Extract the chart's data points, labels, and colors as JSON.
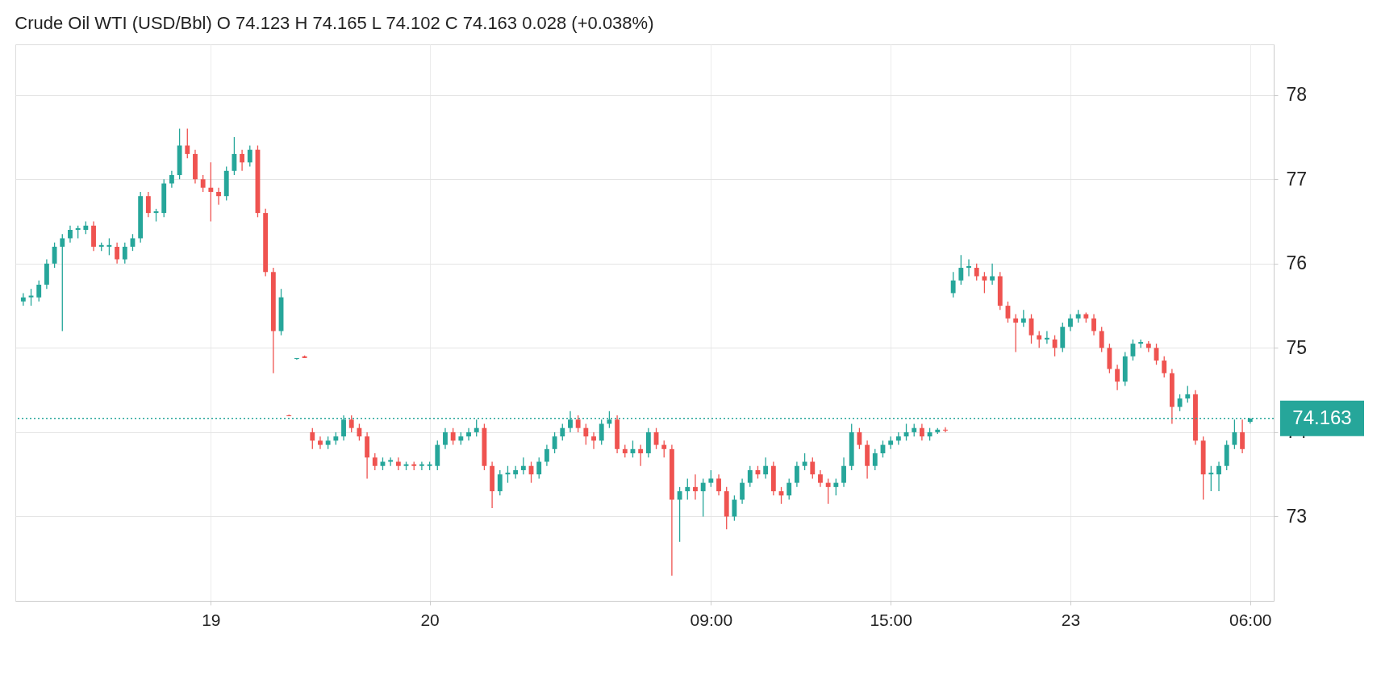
{
  "chart_data": {
    "type": "candlestick",
    "title": "Crude Oil WTI (USD/Bbl) O 74.123 H 74.165 L 74.102 C 74.163  0.028 (+0.038%)",
    "categories": [
      null,
      null,
      null,
      null,
      null,
      null,
      null,
      null,
      null,
      null,
      null,
      null,
      null,
      null,
      null,
      null,
      null,
      null,
      null,
      null,
      null,
      null,
      null,
      null,
      "19",
      null,
      null,
      null,
      null,
      null,
      null,
      null,
      null,
      null,
      null,
      null,
      null,
      null,
      null,
      null,
      null,
      null,
      null,
      null,
      null,
      null,
      null,
      null,
      null,
      null,
      null,
      null,
      "20",
      null,
      null,
      null,
      null,
      null,
      null,
      null,
      null,
      null,
      null,
      null,
      null,
      null,
      null,
      null,
      null,
      null,
      null,
      null,
      null,
      null,
      null,
      null,
      null,
      null,
      null,
      null,
      null,
      null,
      null,
      null,
      null,
      null,
      null,
      null,
      "09:00",
      null,
      null,
      null,
      null,
      null,
      null,
      null,
      null,
      null,
      null,
      null,
      null,
      null,
      null,
      null,
      null,
      null,
      null,
      null,
      null,
      null,
      null,
      "15:00",
      null,
      null,
      null,
      null,
      null,
      null,
      null,
      null,
      null,
      null,
      null,
      null,
      null,
      null,
      null,
      null,
      null,
      null,
      null,
      null,
      null,
      null,
      "23",
      null,
      null,
      null,
      null,
      null,
      null,
      null,
      null,
      null,
      null,
      null,
      null,
      null,
      null,
      null,
      null,
      null,
      null,
      null,
      null,
      null,
      null,
      "06:00",
      null,
      null
    ],
    "ohlc": [
      [
        75.55,
        75.65,
        75.5,
        75.6
      ],
      [
        75.6,
        75.7,
        75.5,
        75.62
      ],
      [
        75.6,
        75.8,
        75.55,
        75.75
      ],
      [
        75.75,
        76.05,
        75.7,
        76.0
      ],
      [
        76.0,
        76.25,
        75.95,
        76.2
      ],
      [
        76.2,
        76.35,
        75.2,
        76.3
      ],
      [
        76.3,
        76.45,
        76.25,
        76.4
      ],
      [
        76.4,
        76.45,
        76.3,
        76.42
      ],
      [
        76.4,
        76.5,
        76.35,
        76.45
      ],
      [
        76.45,
        76.5,
        76.15,
        76.2
      ],
      [
        76.2,
        76.25,
        76.15,
        76.22
      ],
      [
        76.2,
        76.3,
        76.1,
        76.22
      ],
      [
        76.2,
        76.25,
        76.0,
        76.05
      ],
      [
        76.05,
        76.25,
        76.0,
        76.2
      ],
      [
        76.2,
        76.35,
        76.15,
        76.3
      ],
      [
        76.3,
        76.85,
        76.25,
        76.8
      ],
      [
        76.8,
        76.85,
        76.55,
        76.6
      ],
      [
        76.6,
        76.65,
        76.5,
        76.62
      ],
      [
        76.6,
        77.0,
        76.55,
        76.95
      ],
      [
        76.95,
        77.1,
        76.9,
        77.05
      ],
      [
        77.05,
        77.6,
        77.0,
        77.4
      ],
      [
        77.4,
        77.6,
        77.25,
        77.3
      ],
      [
        77.3,
        77.35,
        76.95,
        77.0
      ],
      [
        77.0,
        77.05,
        76.85,
        76.9
      ],
      [
        76.9,
        77.2,
        76.5,
        76.85
      ],
      [
        76.85,
        76.9,
        76.7,
        76.8
      ],
      [
        76.8,
        77.15,
        76.75,
        77.1
      ],
      [
        77.1,
        77.5,
        77.05,
        77.3
      ],
      [
        77.3,
        77.35,
        77.1,
        77.2
      ],
      [
        77.2,
        77.4,
        77.15,
        77.35
      ],
      [
        77.35,
        77.4,
        76.55,
        76.6
      ],
      [
        76.6,
        76.65,
        75.85,
        75.9
      ],
      [
        75.9,
        75.95,
        74.7,
        75.2
      ],
      [
        75.2,
        75.7,
        75.15,
        75.6
      ],
      [
        74.2,
        74.21,
        74.19,
        74.19
      ],
      [
        74.87,
        74.88,
        74.86,
        74.88
      ],
      [
        74.9,
        74.91,
        74.88,
        74.88
      ],
      [
        74.0,
        74.05,
        73.8,
        73.9
      ],
      [
        73.9,
        73.95,
        73.8,
        73.85
      ],
      [
        73.85,
        73.95,
        73.8,
        73.9
      ],
      [
        73.9,
        74.0,
        73.85,
        73.95
      ],
      [
        73.95,
        74.2,
        73.9,
        74.15
      ],
      [
        74.15,
        74.2,
        74.0,
        74.05
      ],
      [
        74.05,
        74.1,
        73.9,
        73.95
      ],
      [
        73.95,
        74.0,
        73.45,
        73.7
      ],
      [
        73.7,
        73.75,
        73.55,
        73.6
      ],
      [
        73.6,
        73.7,
        73.55,
        73.65
      ],
      [
        73.65,
        73.7,
        73.6,
        73.67
      ],
      [
        73.65,
        73.7,
        73.55,
        73.6
      ],
      [
        73.6,
        73.65,
        73.55,
        73.62
      ],
      [
        73.62,
        73.65,
        73.55,
        73.6
      ],
      [
        73.6,
        73.65,
        73.55,
        73.62
      ],
      [
        73.6,
        73.65,
        73.55,
        73.62
      ],
      [
        73.6,
        73.9,
        73.55,
        73.85
      ],
      [
        73.85,
        74.05,
        73.8,
        74.0
      ],
      [
        74.0,
        74.05,
        73.85,
        73.9
      ],
      [
        73.9,
        74.0,
        73.85,
        73.95
      ],
      [
        73.95,
        74.05,
        73.9,
        74.0
      ],
      [
        74.0,
        74.15,
        73.95,
        74.05
      ],
      [
        74.05,
        74.1,
        73.55,
        73.6
      ],
      [
        73.6,
        73.65,
        73.1,
        73.3
      ],
      [
        73.3,
        73.55,
        73.25,
        73.5
      ],
      [
        73.5,
        73.6,
        73.4,
        73.52
      ],
      [
        73.5,
        73.6,
        73.45,
        73.55
      ],
      [
        73.55,
        73.7,
        73.5,
        73.6
      ],
      [
        73.6,
        73.65,
        73.4,
        73.5
      ],
      [
        73.5,
        73.7,
        73.45,
        73.65
      ],
      [
        73.65,
        73.85,
        73.6,
        73.8
      ],
      [
        73.8,
        74.0,
        73.75,
        73.95
      ],
      [
        73.95,
        74.1,
        73.9,
        74.05
      ],
      [
        74.05,
        74.25,
        74.0,
        74.15
      ],
      [
        74.15,
        74.2,
        74.0,
        74.05
      ],
      [
        74.05,
        74.1,
        73.85,
        73.95
      ],
      [
        73.95,
        74.0,
        73.8,
        73.9
      ],
      [
        73.9,
        74.15,
        73.85,
        74.1
      ],
      [
        74.1,
        74.25,
        74.05,
        74.15
      ],
      [
        74.15,
        74.2,
        73.75,
        73.8
      ],
      [
        73.8,
        73.85,
        73.7,
        73.75
      ],
      [
        73.75,
        73.9,
        73.7,
        73.8
      ],
      [
        73.8,
        73.85,
        73.6,
        73.75
      ],
      [
        73.75,
        74.05,
        73.7,
        74.0
      ],
      [
        74.0,
        74.05,
        73.8,
        73.85
      ],
      [
        73.85,
        73.9,
        73.7,
        73.8
      ],
      [
        73.8,
        73.85,
        72.3,
        73.2
      ],
      [
        73.2,
        73.35,
        72.7,
        73.3
      ],
      [
        73.3,
        73.45,
        73.2,
        73.35
      ],
      [
        73.35,
        73.5,
        73.2,
        73.3
      ],
      [
        73.3,
        73.45,
        73.0,
        73.4
      ],
      [
        73.4,
        73.55,
        73.35,
        73.45
      ],
      [
        73.45,
        73.5,
        73.25,
        73.3
      ],
      [
        73.3,
        73.35,
        72.85,
        73.0
      ],
      [
        73.0,
        73.25,
        72.95,
        73.2
      ],
      [
        73.2,
        73.45,
        73.15,
        73.4
      ],
      [
        73.4,
        73.6,
        73.35,
        73.55
      ],
      [
        73.55,
        73.6,
        73.45,
        73.5
      ],
      [
        73.5,
        73.7,
        73.45,
        73.6
      ],
      [
        73.6,
        73.65,
        73.25,
        73.3
      ],
      [
        73.3,
        73.35,
        73.15,
        73.25
      ],
      [
        73.25,
        73.45,
        73.2,
        73.4
      ],
      [
        73.4,
        73.65,
        73.35,
        73.6
      ],
      [
        73.6,
        73.75,
        73.55,
        73.65
      ],
      [
        73.65,
        73.7,
        73.45,
        73.5
      ],
      [
        73.5,
        73.55,
        73.35,
        73.4
      ],
      [
        73.4,
        73.45,
        73.15,
        73.35
      ],
      [
        73.35,
        73.45,
        73.25,
        73.4
      ],
      [
        73.4,
        73.7,
        73.35,
        73.6
      ],
      [
        73.6,
        74.1,
        73.55,
        74.0
      ],
      [
        74.0,
        74.05,
        73.8,
        73.85
      ],
      [
        73.85,
        73.9,
        73.45,
        73.6
      ],
      [
        73.6,
        73.8,
        73.55,
        73.75
      ],
      [
        73.75,
        73.9,
        73.7,
        73.85
      ],
      [
        73.85,
        73.95,
        73.8,
        73.9
      ],
      [
        73.9,
        74.0,
        73.85,
        73.95
      ],
      [
        73.95,
        74.1,
        73.9,
        74.0
      ],
      [
        74.0,
        74.1,
        73.95,
        74.05
      ],
      [
        74.05,
        74.1,
        73.9,
        73.95
      ],
      [
        73.95,
        74.05,
        73.9,
        74.0
      ],
      [
        74.0,
        74.05,
        73.98,
        74.03
      ],
      [
        74.03,
        74.06,
        74.0,
        74.02
      ],
      [
        75.65,
        75.9,
        75.6,
        75.8
      ],
      [
        75.8,
        76.1,
        75.75,
        75.95
      ],
      [
        75.95,
        76.05,
        75.85,
        75.97
      ],
      [
        75.95,
        76.0,
        75.8,
        75.85
      ],
      [
        75.85,
        75.9,
        75.65,
        75.8
      ],
      [
        75.8,
        76.0,
        75.75,
        75.85
      ],
      [
        75.85,
        75.9,
        75.45,
        75.5
      ],
      [
        75.5,
        75.55,
        75.3,
        75.35
      ],
      [
        75.35,
        75.4,
        74.95,
        75.3
      ],
      [
        75.3,
        75.45,
        75.25,
        75.35
      ],
      [
        75.35,
        75.4,
        75.05,
        75.15
      ],
      [
        75.15,
        75.2,
        75.0,
        75.1
      ],
      [
        75.1,
        75.2,
        75.05,
        75.12
      ],
      [
        75.1,
        75.15,
        74.9,
        75.0
      ],
      [
        75.0,
        75.3,
        74.95,
        75.25
      ],
      [
        75.25,
        75.4,
        75.2,
        75.35
      ],
      [
        75.35,
        75.45,
        75.3,
        75.4
      ],
      [
        75.4,
        75.42,
        75.3,
        75.35
      ],
      [
        75.35,
        75.4,
        75.15,
        75.2
      ],
      [
        75.2,
        75.25,
        74.95,
        75.0
      ],
      [
        75.0,
        75.05,
        74.7,
        74.75
      ],
      [
        74.75,
        74.8,
        74.5,
        74.6
      ],
      [
        74.6,
        74.95,
        74.55,
        74.9
      ],
      [
        74.9,
        75.1,
        74.85,
        75.05
      ],
      [
        75.05,
        75.1,
        75.0,
        75.07
      ],
      [
        75.05,
        75.08,
        74.95,
        75.0
      ],
      [
        75.0,
        75.05,
        74.8,
        74.85
      ],
      [
        74.85,
        74.9,
        74.65,
        74.7
      ],
      [
        74.7,
        74.75,
        74.1,
        74.3
      ],
      [
        74.3,
        74.45,
        74.25,
        74.4
      ],
      [
        74.4,
        74.55,
        74.35,
        74.45
      ],
      [
        74.45,
        74.5,
        73.85,
        73.9
      ],
      [
        73.9,
        73.95,
        73.2,
        73.5
      ],
      [
        73.5,
        73.6,
        73.3,
        73.52
      ],
      [
        73.5,
        73.65,
        73.3,
        73.6
      ],
      [
        73.6,
        73.9,
        73.55,
        73.85
      ],
      [
        73.85,
        74.15,
        73.8,
        74.0
      ],
      [
        74.0,
        74.15,
        73.75,
        73.8
      ],
      [
        74.123,
        74.165,
        74.102,
        74.163
      ],
      null,
      null
    ],
    "colors": [
      "#26a69a",
      "#26a69a",
      "#26a69a",
      "#26a69a",
      "#26a69a",
      "#26a69a",
      "#26a69a",
      "#26a69a",
      "#26a69a",
      "#ef5350",
      "#26a69a",
      "#26a69a",
      "#ef5350",
      "#26a69a",
      "#26a69a",
      "#26a69a",
      "#ef5350",
      "#26a69a",
      "#26a69a",
      "#26a69a",
      "#26a69a",
      "#ef5350",
      "#ef5350",
      "#ef5350",
      "#ef5350",
      "#ef5350",
      "#26a69a",
      "#26a69a",
      "#ef5350",
      "#26a69a",
      "#ef5350",
      "#ef5350",
      "#ef5350",
      "#26a69a",
      "#ef5350",
      "#26a69a",
      "#ef5350",
      "#ef5350",
      "#ef5350",
      "#26a69a",
      "#26a69a",
      "#26a69a",
      "#ef5350",
      "#ef5350",
      "#ef5350",
      "#ef5350",
      "#26a69a",
      "#26a69a",
      "#ef5350",
      "#26a69a",
      "#ef5350",
      "#26a69a",
      "#26a69a",
      "#26a69a",
      "#26a69a",
      "#ef5350",
      "#26a69a",
      "#26a69a",
      "#26a69a",
      "#ef5350",
      "#ef5350",
      "#26a69a",
      "#26a69a",
      "#26a69a",
      "#26a69a",
      "#ef5350",
      "#26a69a",
      "#26a69a",
      "#26a69a",
      "#26a69a",
      "#26a69a",
      "#ef5350",
      "#ef5350",
      "#ef5350",
      "#26a69a",
      "#26a69a",
      "#ef5350",
      "#ef5350",
      "#26a69a",
      "#ef5350",
      "#26a69a",
      "#ef5350",
      "#ef5350",
      "#ef5350",
      "#26a69a",
      "#26a69a",
      "#ef5350",
      "#26a69a",
      "#26a69a",
      "#ef5350",
      "#ef5350",
      "#26a69a",
      "#26a69a",
      "#26a69a",
      "#ef5350",
      "#26a69a",
      "#ef5350",
      "#ef5350",
      "#26a69a",
      "#26a69a",
      "#26a69a",
      "#ef5350",
      "#ef5350",
      "#ef5350",
      "#26a69a",
      "#26a69a",
      "#26a69a",
      "#ef5350",
      "#ef5350",
      "#26a69a",
      "#26a69a",
      "#26a69a",
      "#26a69a",
      "#26a69a",
      "#26a69a",
      "#ef5350",
      "#26a69a",
      "#26a69a",
      "#ef5350",
      "#26a69a",
      "#26a69a",
      "#26a69a",
      "#ef5350",
      "#ef5350",
      "#26a69a",
      "#ef5350",
      "#ef5350",
      "#ef5350",
      "#26a69a",
      "#ef5350",
      "#ef5350",
      "#26a69a",
      "#ef5350",
      "#26a69a",
      "#26a69a",
      "#26a69a",
      "#ef5350",
      "#ef5350",
      "#ef5350",
      "#ef5350",
      "#ef5350",
      "#26a69a",
      "#26a69a",
      "#26a69a",
      "#ef5350",
      "#ef5350",
      "#ef5350",
      "#ef5350",
      "#26a69a",
      "#26a69a",
      "#ef5350",
      "#ef5350",
      "#26a69a",
      "#26a69a",
      "#26a69a",
      "#26a69a",
      "#ef5350",
      "#26a69a",
      null,
      null
    ],
    "ylim": [
      72.0,
      78.6
    ],
    "yticks": [
      73,
      74,
      75,
      76,
      77,
      78
    ],
    "grid": true,
    "ref_lines": [
      {
        "axis": "y",
        "value": 74.163,
        "label": "74.163",
        "color": "#26a69a",
        "line_style": "dotted"
      }
    ]
  }
}
